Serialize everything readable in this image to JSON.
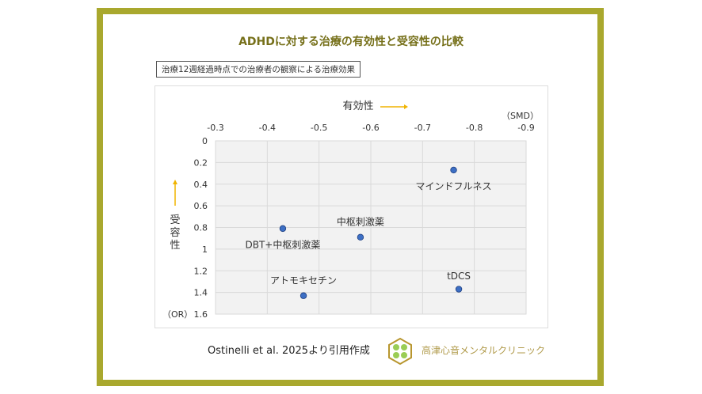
{
  "title": "ADHDに対する治療の有効性と受容性の比較",
  "subtitle": "治療12週経過時点での治療者の観察による治療効果",
  "citation": "Ostinelli et al. 2025より引用作成",
  "clinic_name": "高津心音メンタルクリニック",
  "colors": {
    "frame": "#a9a82e",
    "point": "#3d6fc4",
    "arrow": "#f0b400",
    "title": "#76701a"
  },
  "chart_data": {
    "type": "scatter",
    "xlabel": "有効性",
    "xunit": "（SMD）",
    "ylabel": "受容性",
    "yunit": "（OR）",
    "xlim": [
      -0.3,
      -0.9
    ],
    "ylim": [
      0,
      1.6
    ],
    "x_ticks": [
      "-0.3",
      "-0.4",
      "-0.5",
      "-0.6",
      "-0.7",
      "-0.8",
      "-0.9"
    ],
    "y_ticks": [
      "0",
      "0.2",
      "0.4",
      "0.6",
      "0.8",
      "1",
      "1.2",
      "1.4",
      "1.6"
    ],
    "x_tick_values": [
      -0.3,
      -0.4,
      -0.5,
      -0.6,
      -0.7,
      -0.8,
      -0.9
    ],
    "y_tick_values": [
      0,
      0.2,
      0.4,
      0.6,
      0.8,
      1,
      1.2,
      1.4,
      1.6
    ],
    "grid": true,
    "points": [
      {
        "label": "マインドフルネス",
        "x": -0.76,
        "y": 0.27,
        "lx": -0.76,
        "ly": 0.42
      },
      {
        "label": "DBT+中枢刺激薬",
        "x": -0.43,
        "y": 0.81,
        "lx": -0.43,
        "ly": 0.96
      },
      {
        "label": "中枢刺激薬",
        "x": -0.58,
        "y": 0.89,
        "lx": -0.58,
        "ly": 0.75
      },
      {
        "label": "アトモキセチン",
        "x": -0.47,
        "y": 1.43,
        "lx": -0.47,
        "ly": 1.29
      },
      {
        "label": "tDCS",
        "x": -0.77,
        "y": 1.37,
        "lx": -0.77,
        "ly": 1.25
      }
    ]
  }
}
